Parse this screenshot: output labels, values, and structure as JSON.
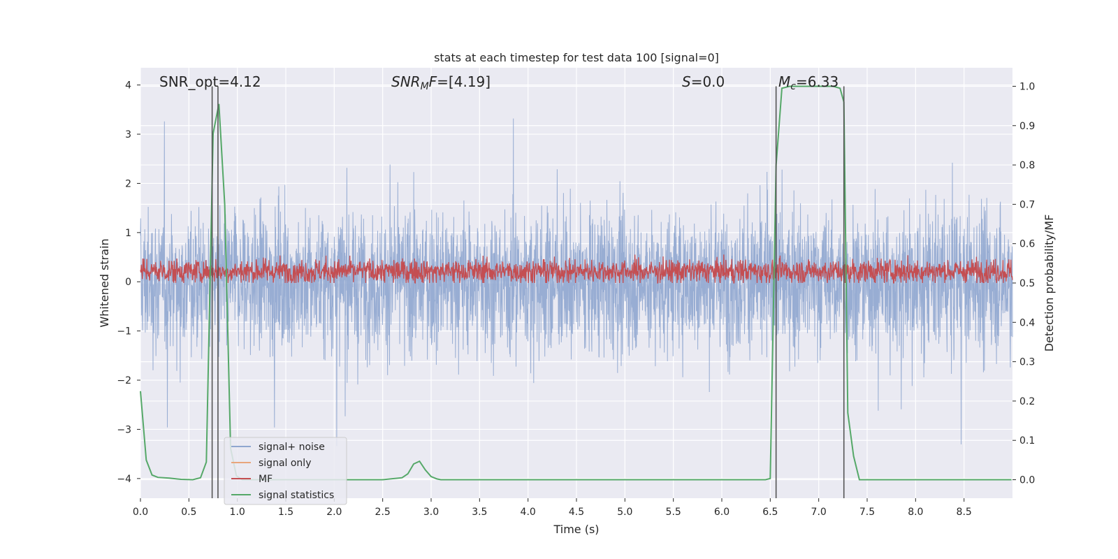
{
  "chart_data": {
    "type": "line",
    "title": "stats at each timestep for test data 100 [signal=0]",
    "xlabel": "Time (s)",
    "ylabel": "Whitened strain",
    "y2label": "Detection probability/MF",
    "xlim": [
      0,
      9.0
    ],
    "ylim": [
      -4.4,
      4.35
    ],
    "y2lim": [
      -0.047,
      1.047
    ],
    "xticks": [
      "0.0",
      "0.5",
      "1.0",
      "1.5",
      "2.0",
      "2.5",
      "3.0",
      "3.5",
      "4.0",
      "4.5",
      "5.0",
      "5.5",
      "6.0",
      "6.5",
      "7.0",
      "7.5",
      "8.0",
      "8.5"
    ],
    "yticks": [
      "4",
      "3",
      "2",
      "1",
      "0",
      "−1",
      "−2",
      "−3",
      "−4"
    ],
    "y2ticks": [
      "1.0",
      "0.9",
      "0.8",
      "0.7",
      "0.6",
      "0.5",
      "0.4",
      "0.3",
      "0.2",
      "0.1",
      "0.0"
    ],
    "grid": true,
    "legend_position": "lower-left",
    "annotations": [
      {
        "text": "SNR_opt=4.12",
        "x": 0.2,
        "y": 4.0
      },
      {
        "text": "SNR_MF=[4.19]",
        "x": 2.6,
        "y": 4.0
      },
      {
        "text": "S=0.0",
        "x": 5.6,
        "y": 4.0
      },
      {
        "text": "M_c=6.33",
        "x": 6.6,
        "y": 4.0
      }
    ],
    "series": [
      {
        "name": "signal+ noise",
        "color": "#8fa6cf",
        "axis": "left",
        "kind": "noise",
        "amplitude_typical": 1.0,
        "amplitude_max": 3.5
      },
      {
        "name": "signal only",
        "color": "#e8a57c",
        "axis": "left",
        "values": []
      },
      {
        "name": "MF",
        "color": "#c44e52",
        "axis": "right",
        "kind": "noise",
        "mean": 0.53,
        "min": 0.5,
        "max": 0.62
      },
      {
        "name": "signal statistics",
        "color": "#55a868",
        "axis": "right",
        "x": [
          0.0,
          0.06,
          0.12,
          0.18,
          0.3,
          0.42,
          0.54,
          0.62,
          0.68,
          0.75,
          0.81,
          0.87,
          0.93,
          0.99,
          1.05,
          1.1,
          2.5,
          2.7,
          2.76,
          2.82,
          2.88,
          2.94,
          3.0,
          3.06,
          3.1,
          6.45,
          6.5,
          6.56,
          6.62,
          6.7,
          7.0,
          7.15,
          7.22,
          7.26,
          7.3,
          7.36,
          7.42,
          8.99
        ],
        "values": [
          0.225,
          0.05,
          0.012,
          0.006,
          0.004,
          0.001,
          0.0,
          0.005,
          0.045,
          0.88,
          0.955,
          0.7,
          0.08,
          0.01,
          0.0,
          0.0,
          0.0,
          0.005,
          0.015,
          0.04,
          0.047,
          0.025,
          0.008,
          0.002,
          0.0,
          0.0,
          0.003,
          0.8,
          0.995,
          1.0,
          1.0,
          1.0,
          0.995,
          0.96,
          0.17,
          0.06,
          0.0,
          0.0
        ]
      }
    ],
    "vlines": [
      0.74,
      0.8,
      6.56,
      7.26
    ]
  }
}
